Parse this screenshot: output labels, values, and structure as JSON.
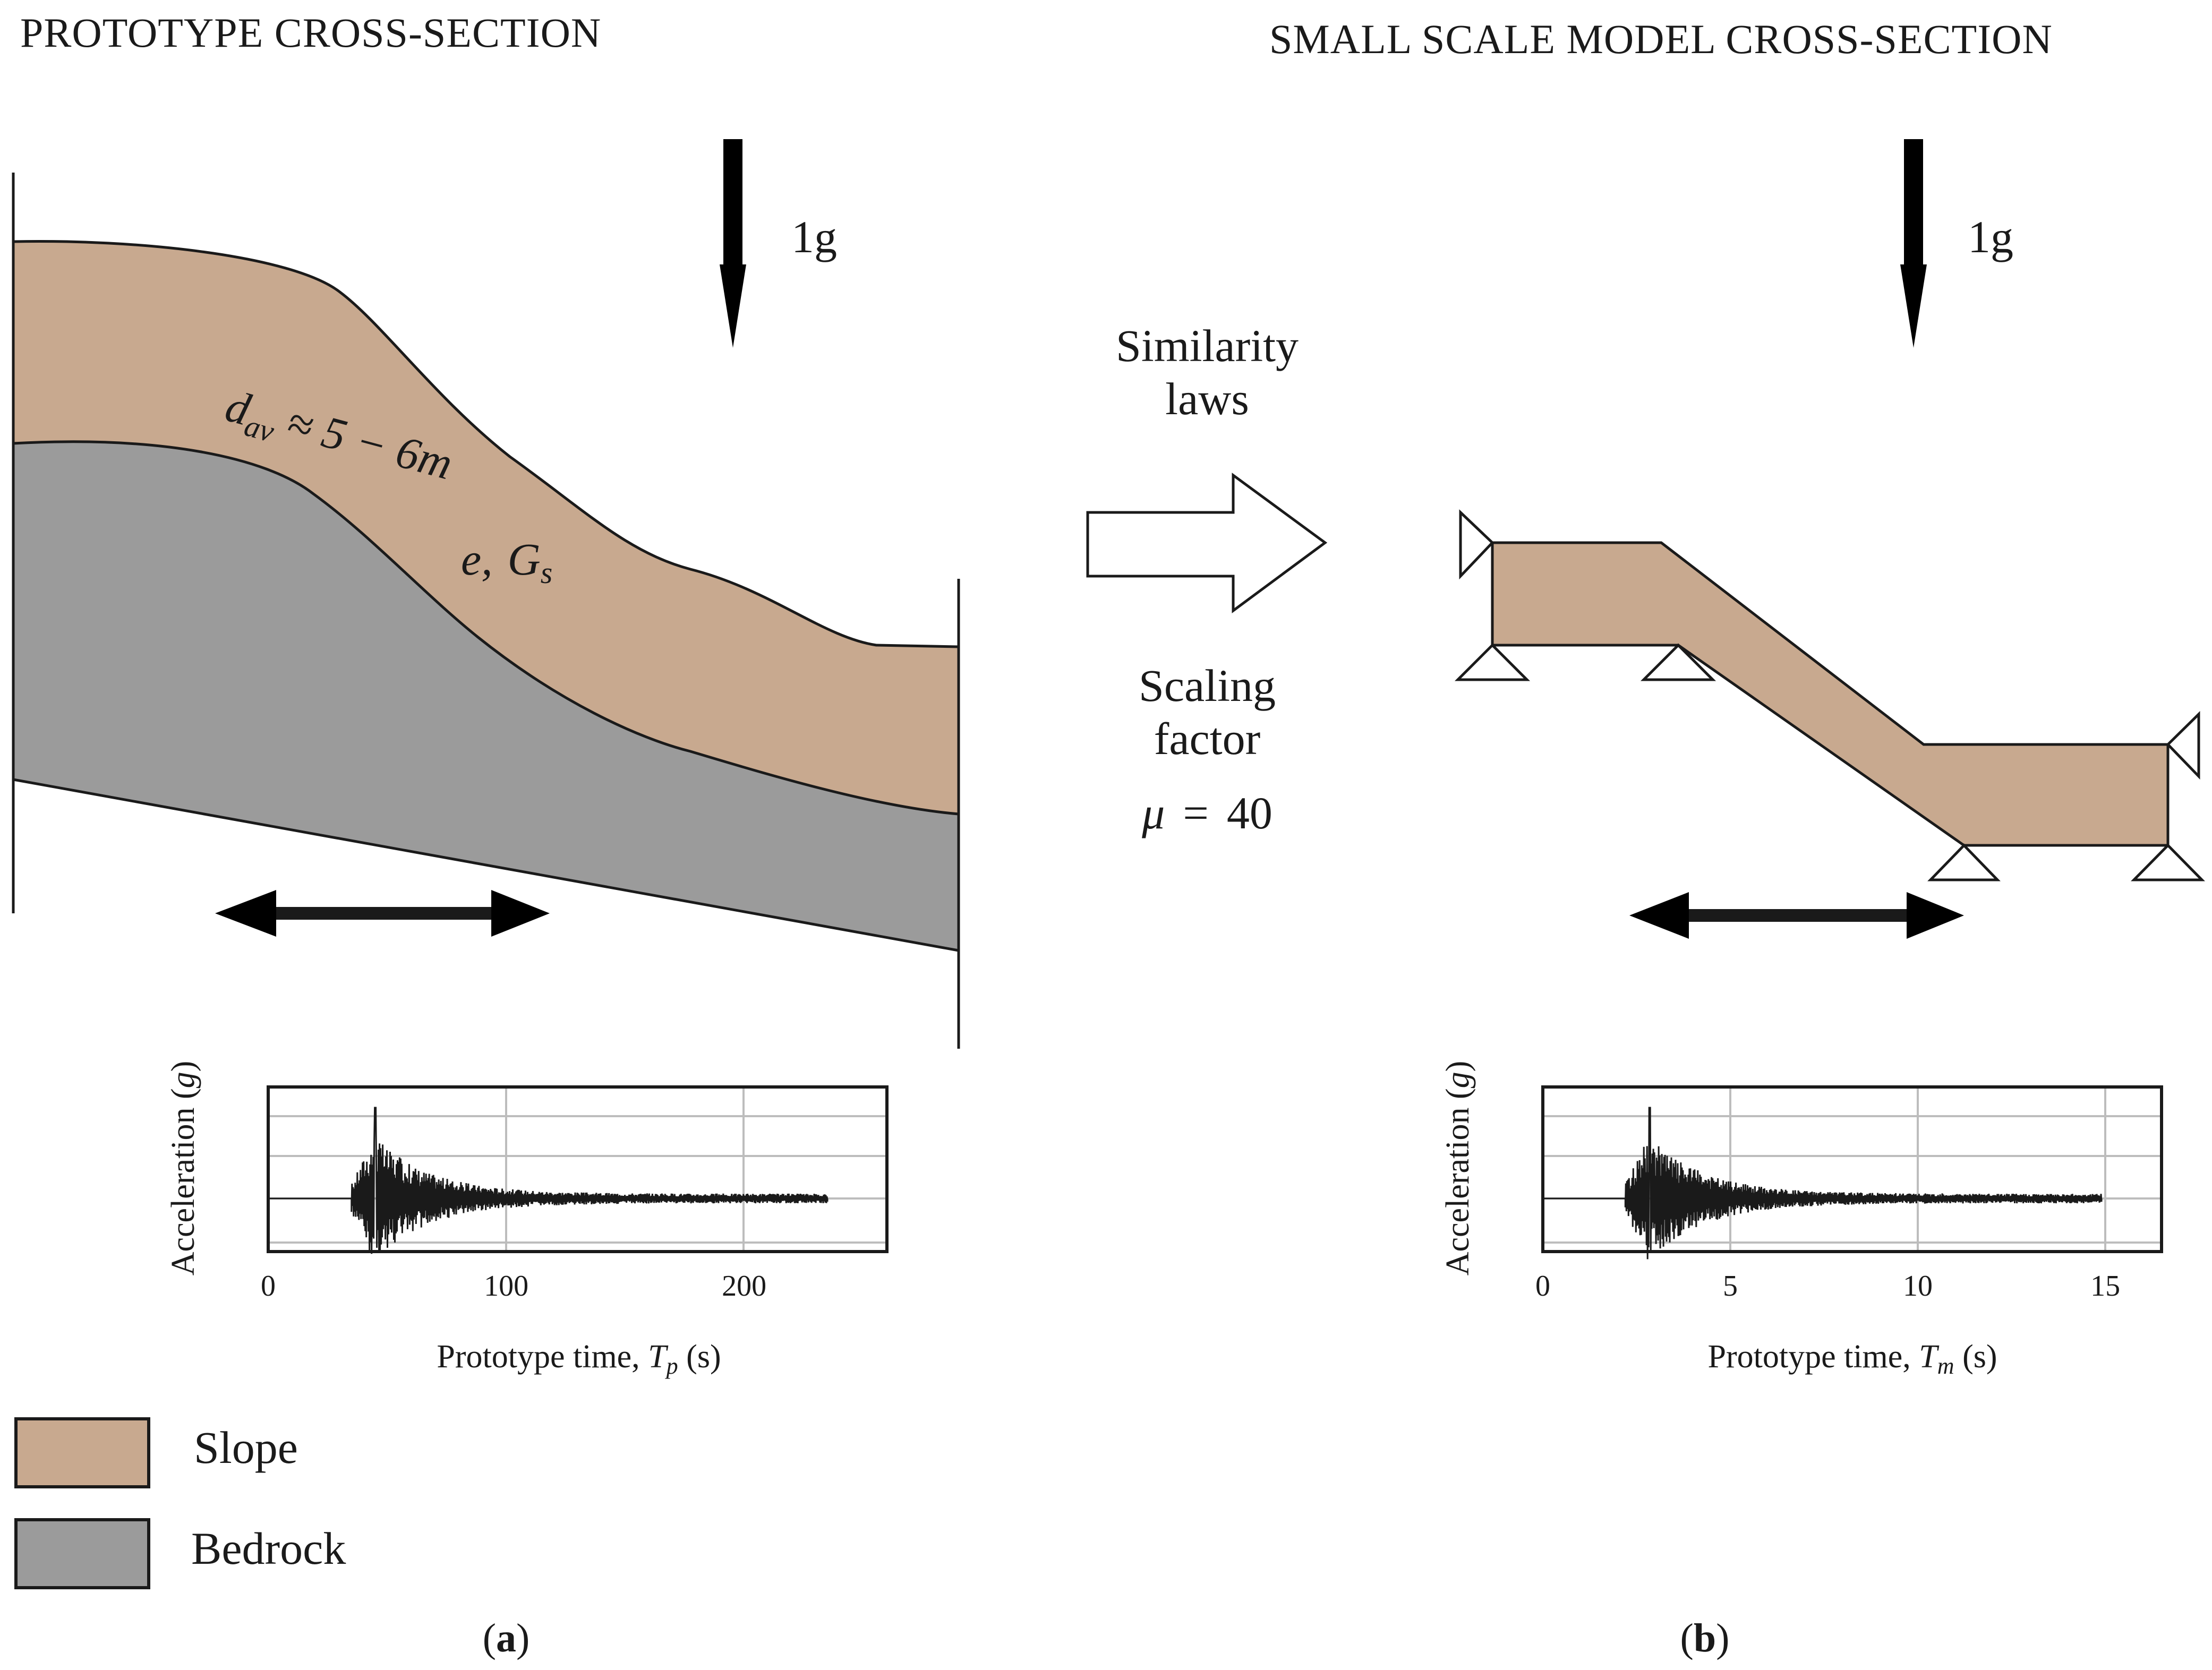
{
  "panel_a": {
    "heading": "PROTOTYPE CROSS-SECTION",
    "gravity_label": "1g",
    "thickness_var": "d",
    "thickness_sub": "av",
    "thickness_value": " ≈ 5 − 6m",
    "params_e": "e,",
    "params_G": "G",
    "params_G_sub": "s",
    "panel_letter": "a"
  },
  "panel_b": {
    "heading": "SMALL SCALE MODEL CROSS-SECTION",
    "gravity_label": "1g",
    "panel_letter": "b"
  },
  "middle": {
    "similarity_line1": "Similarity",
    "similarity_line2": "laws",
    "scaling_line1": "Scaling",
    "scaling_line2": "factor",
    "mu_symbol": "μ",
    "mu_equals": "=",
    "mu_value": "40"
  },
  "legend": [
    {
      "label": "Slope",
      "color": "#c8a98f"
    },
    {
      "label": "Bedrock",
      "color": "#9b9b9b"
    }
  ],
  "colors": {
    "slope": "#c8a98f",
    "bedrock": "#9b9b9b",
    "stroke": "#1a1a1a"
  },
  "icons": {
    "gravity": "down-arrow-icon",
    "shaking": "double-arrow-icon",
    "transform": "right-arrow-icon",
    "support": "triangle-support-icon"
  },
  "chart_data": [
    {
      "type": "line",
      "title": "",
      "ylabel_text": "Acceleration (",
      "ylabel_unit": "g",
      "ylabel_close": ")",
      "xlabel_text": "Prototype time, ",
      "xlabel_var": "T",
      "xlabel_sub": "p",
      "xlabel_unit": " (s)",
      "xlim": [
        0,
        260
      ],
      "ylim": [
        -1,
        1
      ],
      "xticks": [
        0,
        100,
        200
      ],
      "xtick_labels": [
        "0",
        "100",
        "200"
      ],
      "signal_start": 35,
      "signal_end": 235,
      "peak_time": 45,
      "peak_value": 0.95
    },
    {
      "type": "line",
      "title": "",
      "ylabel_text": "Acceleration (",
      "ylabel_unit": "g",
      "ylabel_close": ")",
      "xlabel_text": "Prototype time, ",
      "xlabel_var": "T",
      "xlabel_sub": "m",
      "xlabel_unit": " (s)",
      "xlim": [
        0,
        16.5
      ],
      "ylim": [
        -1,
        1
      ],
      "xticks": [
        0,
        5,
        10,
        15
      ],
      "xtick_labels": [
        "0",
        "5",
        "10",
        "15"
      ],
      "signal_start": 2.2,
      "signal_end": 14.9,
      "peak_time": 2.85,
      "peak_value": 0.95
    }
  ]
}
